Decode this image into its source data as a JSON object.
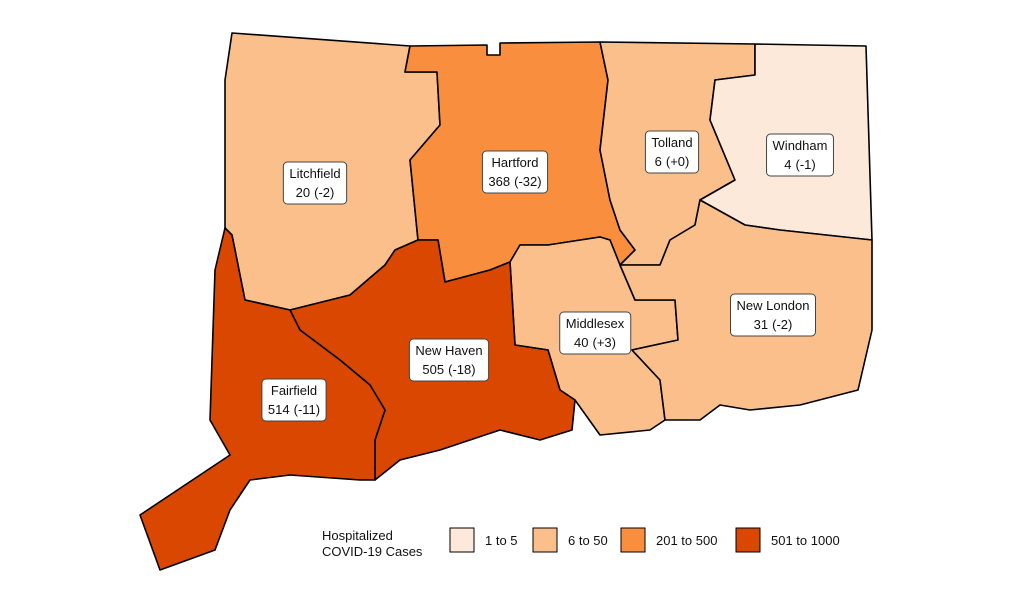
{
  "counties": [
    {
      "name": "Litchfield",
      "cases": 20,
      "change": {
        "value": -2,
        "label": "(-2)"
      }
    },
    {
      "name": "Hartford",
      "cases": 368,
      "change": {
        "value": -32,
        "label": "(-32)"
      }
    },
    {
      "name": "Tolland",
      "cases": 6,
      "change": {
        "value": 0,
        "label": "(+0)"
      }
    },
    {
      "name": "Windham",
      "cases": 4,
      "change": {
        "value": -1,
        "label": "(-1)"
      }
    },
    {
      "name": "Middlesex",
      "cases": 40,
      "change": {
        "value": 3,
        "label": "(+3)"
      }
    },
    {
      "name": "New London",
      "cases": 31,
      "change": {
        "value": -2,
        "label": "(-2)"
      }
    },
    {
      "name": "New Haven",
      "cases": 505,
      "change": {
        "value": -18,
        "label": "(-18)"
      }
    },
    {
      "name": "Fairfield",
      "cases": 514,
      "change": {
        "value": -11,
        "label": "(-11)"
      }
    }
  ],
  "legend": {
    "title": [
      "Hospitalized",
      "COVID-19 Cases"
    ],
    "bins": [
      {
        "label": "1 to 5",
        "min": 1,
        "max": 5,
        "color": "#fde9d9"
      },
      {
        "label": "6 to 50",
        "min": 6,
        "max": 50,
        "color": "#fbbf8b"
      },
      {
        "label": "201 to 500",
        "min": 201,
        "max": 500,
        "color": "#f98f3e"
      },
      {
        "label": "501 to 1000",
        "min": 501,
        "max": 1000,
        "color": "#d94701"
      }
    ]
  }
}
